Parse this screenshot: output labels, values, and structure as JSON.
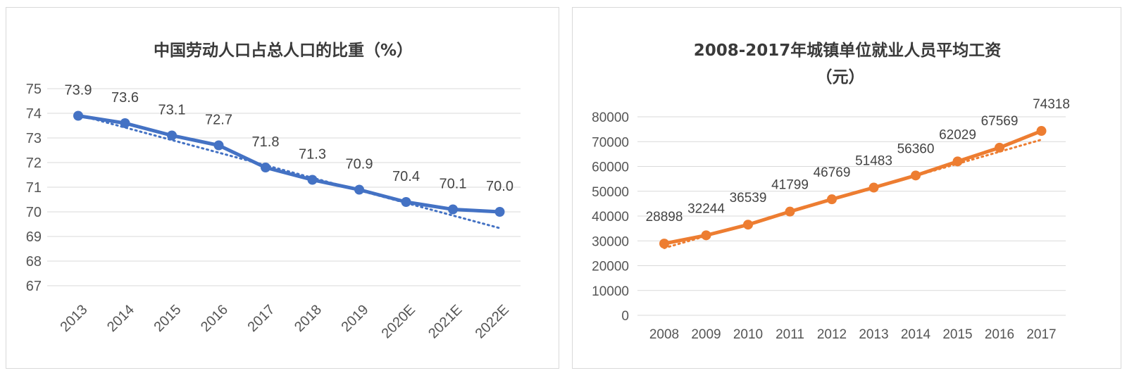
{
  "colors": {
    "left_series": "#4472c4",
    "right_series": "#ed7d31",
    "grid": "#d9d9d9"
  },
  "chart_data": [
    {
      "type": "line",
      "title": "中国劳动人口占总人口的比重（%）",
      "x": [
        "2013",
        "2014",
        "2015",
        "2016",
        "2017",
        "2018",
        "2019",
        "2020E",
        "2021E",
        "2022E"
      ],
      "series": [
        {
          "values": [
            73.9,
            73.6,
            73.1,
            72.7,
            71.8,
            71.3,
            70.9,
            70.4,
            70.1,
            70.0
          ]
        }
      ],
      "data_labels": [
        "73.9",
        "73.6",
        "73.1",
        "72.7",
        "71.8",
        "71.3",
        "70.9",
        "70.4",
        "70.1",
        "70.0"
      ],
      "y_ticks": [
        "67",
        "68",
        "69",
        "70",
        "71",
        "72",
        "73",
        "74",
        "75"
      ],
      "ylim": [
        67,
        75
      ],
      "trendline": "linear, dotted",
      "grid": true,
      "legend": "none"
    },
    {
      "type": "line",
      "title": "2008-2017年城镇单位就业人员平均工资",
      "title_line2": "（元）",
      "x": [
        "2008",
        "2009",
        "2010",
        "2011",
        "2012",
        "2013",
        "2014",
        "2015",
        "2016",
        "2017"
      ],
      "series": [
        {
          "values": [
            28898,
            32244,
            36539,
            41799,
            46769,
            51483,
            56360,
            62029,
            67569,
            74318
          ]
        }
      ],
      "data_labels": [
        "28898",
        "32244",
        "36539",
        "41799",
        "46769",
        "51483",
        "56360",
        "62029",
        "67569",
        "74318"
      ],
      "y_ticks": [
        "0",
        "10000",
        "20000",
        "30000",
        "40000",
        "50000",
        "60000",
        "70000",
        "80000"
      ],
      "ylim": [
        0,
        80000
      ],
      "trendline": "linear, dotted",
      "grid": true,
      "legend": "none"
    }
  ]
}
